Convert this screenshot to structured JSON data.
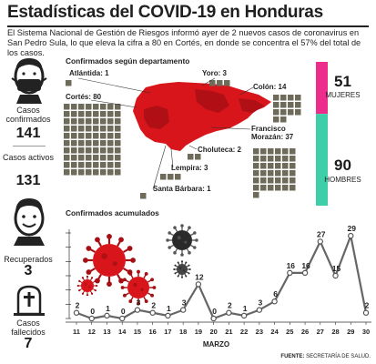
{
  "title": "Estadísticas del COVID-19 en Honduras",
  "intro": "El Sistema Nacional de Gestión de Riesgos informó ayer de 2 nuevos casos de coronavirus en San Pedro Sula, lo que eleva la cifra a 80 en Cortés, en donde se concentra el 57% del total de los casos.",
  "stats": [
    {
      "label": "Casos confirmados",
      "value": "141"
    },
    {
      "label": "Casos activos",
      "value": "131"
    },
    {
      "label": "Recuperados",
      "value": "3"
    },
    {
      "label": "Casos fallecidos",
      "value": "7"
    }
  ],
  "departments_section": {
    "title": "Confirmados según departamento",
    "departments": [
      {
        "label": "Atlántida: 1",
        "count": 1
      },
      {
        "label": "Yoro: 3",
        "count": 3
      },
      {
        "label": "Colón: 14",
        "count": 14
      },
      {
        "label": "Cortés: 80",
        "count": 80
      },
      {
        "label": "Francisco Morazán: 37",
        "count": 37
      },
      {
        "label": "Choluteca: 2",
        "count": 2
      },
      {
        "label": "Lempira: 3",
        "count": 3
      },
      {
        "label": "Santa Bárbara: 1",
        "count": 1
      }
    ]
  },
  "gender": {
    "women_value": "51",
    "women_label": "MUJERES",
    "men_value": "90",
    "men_label": "HOMBRES",
    "women": 51,
    "men": 90,
    "women_color": "#ec2d8c",
    "men_color": "#3ecfa9"
  },
  "colors": {
    "accent": "#d7151b",
    "square": "#6e6b5a",
    "line": "#666666"
  },
  "chart_data": {
    "type": "line",
    "title": "Confirmados acumulados",
    "xlabel": "MARZO",
    "ylabel": "",
    "categories": [
      "11",
      "12",
      "13",
      "14",
      "15",
      "16",
      "17",
      "18",
      "19",
      "20",
      "21",
      "22",
      "23",
      "24",
      "25",
      "26",
      "27",
      "28",
      "29",
      "30"
    ],
    "values": [
      2,
      0,
      1,
      0,
      3,
      2,
      1,
      3,
      12,
      0,
      2,
      1,
      3,
      6,
      16,
      16,
      27,
      15,
      29,
      2
    ],
    "ylim": [
      0,
      30
    ],
    "grid": false,
    "legend": "none"
  },
  "source": {
    "label": "FUENTE:",
    "value": "SECRETARÍA DE SALUD."
  }
}
